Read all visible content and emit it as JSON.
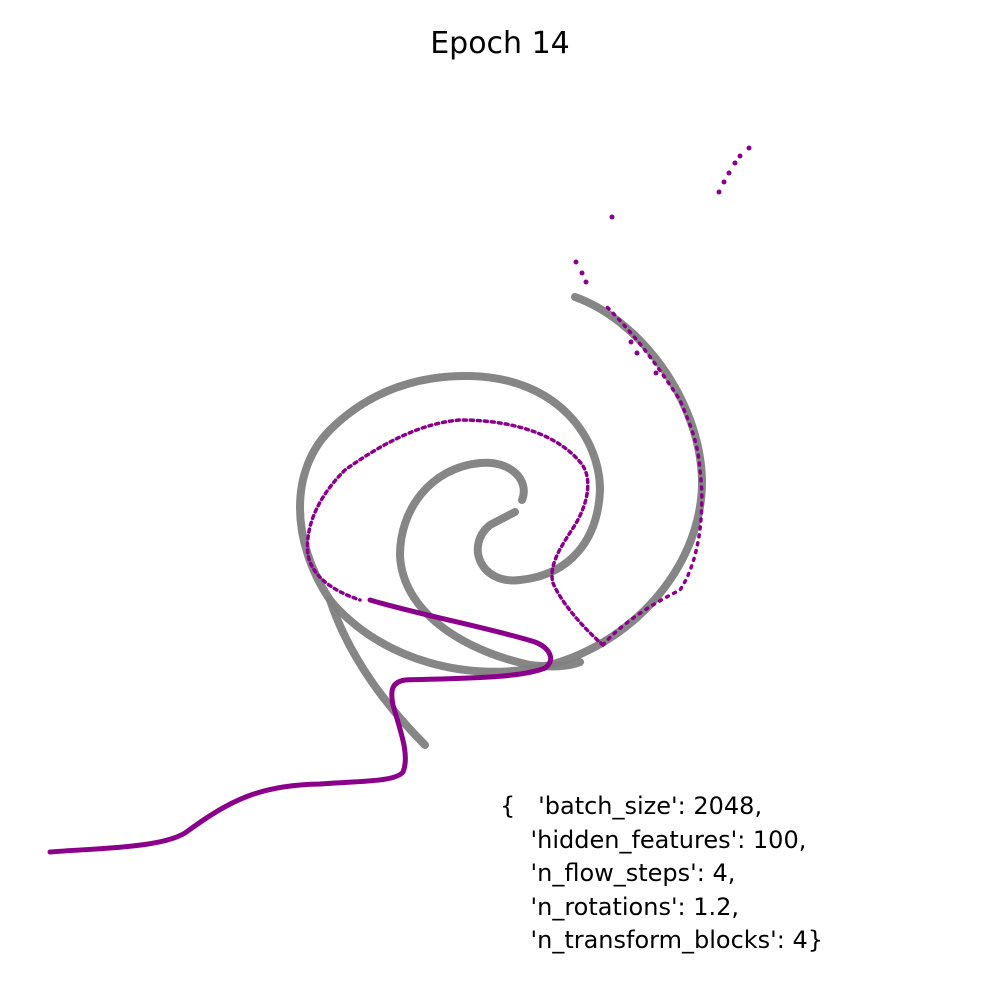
{
  "chart_data": {
    "type": "scatter",
    "title": "Epoch 14",
    "grid": false,
    "axes_visible": false,
    "series": [
      {
        "role": "target",
        "color": "#808080"
      },
      {
        "role": "samples",
        "color": "#8b008b"
      }
    ],
    "annotation_lines": [
      "{   'batch_size': 2048,",
      "    'hidden_features': 100,",
      "    'n_flow_steps': 4,",
      "    'n_rotations': 1.2,",
      "    'n_transform_blocks': 4}"
    ]
  }
}
